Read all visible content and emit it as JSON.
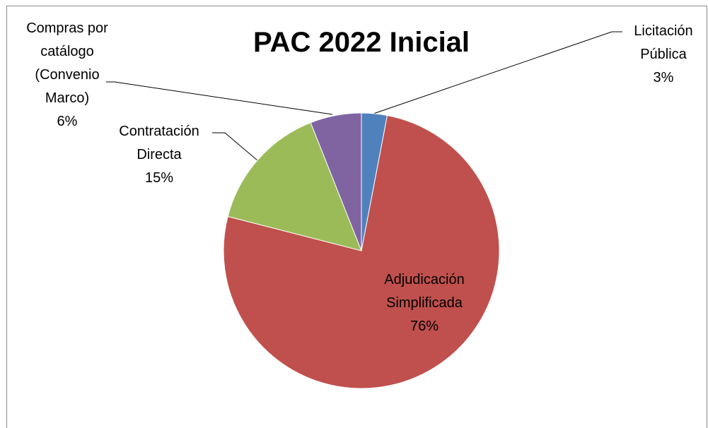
{
  "chart_data": {
    "type": "pie",
    "title": "PAC 2022 Inicial",
    "categories": [
      "Licitación Pública",
      "Adjudicación Simplificada",
      "Contratación Directa",
      "Compras por catálogo (Convenio Marco)"
    ],
    "values": [
      3,
      76,
      15,
      6
    ],
    "value_labels": [
      "3%",
      "76%",
      "15%",
      "6%"
    ],
    "colors": [
      "#4f81bd",
      "#c0504d",
      "#9bbb59",
      "#8064a2"
    ]
  }
}
